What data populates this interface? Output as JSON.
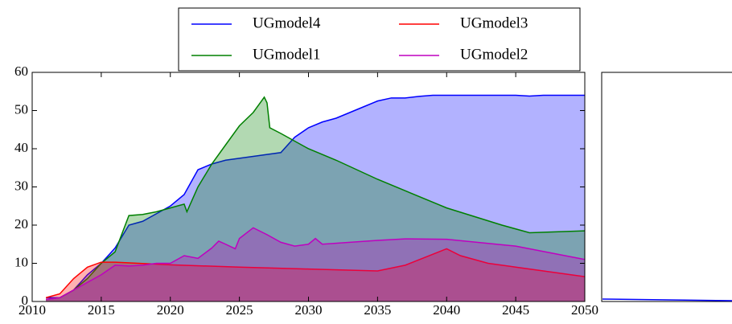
{
  "chart_data": {
    "type": "area",
    "xlim": [
      2010,
      2050
    ],
    "xticks": [
      2010,
      2015,
      2020,
      2025,
      2030,
      2035,
      2040,
      2045,
      2050
    ],
    "ylim": [
      0,
      60
    ],
    "yticks": [
      0,
      10,
      20,
      30,
      40,
      50,
      60
    ],
    "series": [
      {
        "name": "UGmodel4",
        "color": "#0000ff",
        "x": [
          2011,
          2012,
          2013,
          2014,
          2015,
          2016,
          2016.5,
          2017,
          2018,
          2019,
          2020,
          2021,
          2022,
          2023,
          2024,
          2025,
          2026,
          2027,
          2028,
          2029,
          2030,
          2031,
          2032,
          2033,
          2034,
          2035,
          2036,
          2037,
          2038,
          2039,
          2040,
          2045,
          2046,
          2047,
          2050
        ],
        "values": [
          1,
          1,
          3,
          7,
          10,
          14,
          17,
          20,
          21,
          23,
          25,
          28,
          34.5,
          36,
          37,
          37.5,
          38,
          38.5,
          39,
          43,
          45.5,
          47,
          48,
          49.5,
          51,
          52.5,
          53.3,
          53.3,
          53.7,
          54,
          54,
          54,
          53.8,
          54,
          54
        ]
      },
      {
        "name": "UGmodel1",
        "color": "#008000",
        "x": [
          2011,
          2012,
          2013,
          2014,
          2015,
          2016,
          2017,
          2018,
          2019,
          2020,
          2021,
          2021.2,
          2022,
          2023,
          2024,
          2025,
          2026,
          2026.8,
          2027,
          2027.2,
          2028,
          2030,
          2032,
          2035,
          2040,
          2044,
          2046,
          2050
        ],
        "values": [
          0.5,
          1,
          3,
          6,
          10,
          13,
          22.5,
          22.8,
          23.5,
          24.5,
          25.5,
          23.5,
          30,
          36,
          41,
          46,
          49.5,
          53.5,
          52,
          45.5,
          44,
          40,
          37,
          32,
          24.5,
          20,
          18,
          18.5
        ]
      },
      {
        "name": "UGmodel3",
        "color": "#ff0000",
        "x": [
          2011,
          2012,
          2013,
          2014,
          2015,
          2016,
          2020,
          2025,
          2030,
          2035,
          2037,
          2040,
          2041,
          2043,
          2045,
          2050
        ],
        "values": [
          1,
          2,
          6,
          9,
          10.3,
          10.3,
          9.6,
          9,
          8.5,
          8,
          9.5,
          13.8,
          12,
          10,
          9,
          6.5
        ]
      },
      {
        "name": "UGmodel2",
        "color": "#bf00bf",
        "x": [
          2011,
          2012,
          2013,
          2014,
          2015,
          2016,
          2017,
          2018,
          2019,
          2020,
          2021,
          2022,
          2023,
          2023.5,
          2024,
          2024.7,
          2025,
          2026,
          2027,
          2028,
          2029,
          2030,
          2030.5,
          2031,
          2035,
          2037,
          2040,
          2045,
          2050
        ],
        "values": [
          0.5,
          1,
          3,
          5,
          7,
          9.5,
          9.3,
          9.5,
          10,
          10,
          12,
          11.3,
          14,
          15.8,
          15,
          13.8,
          16.5,
          19.3,
          17.5,
          15.5,
          14.5,
          15,
          16.5,
          15,
          16,
          16.4,
          16.3,
          14.5,
          11
        ]
      }
    ]
  }
}
